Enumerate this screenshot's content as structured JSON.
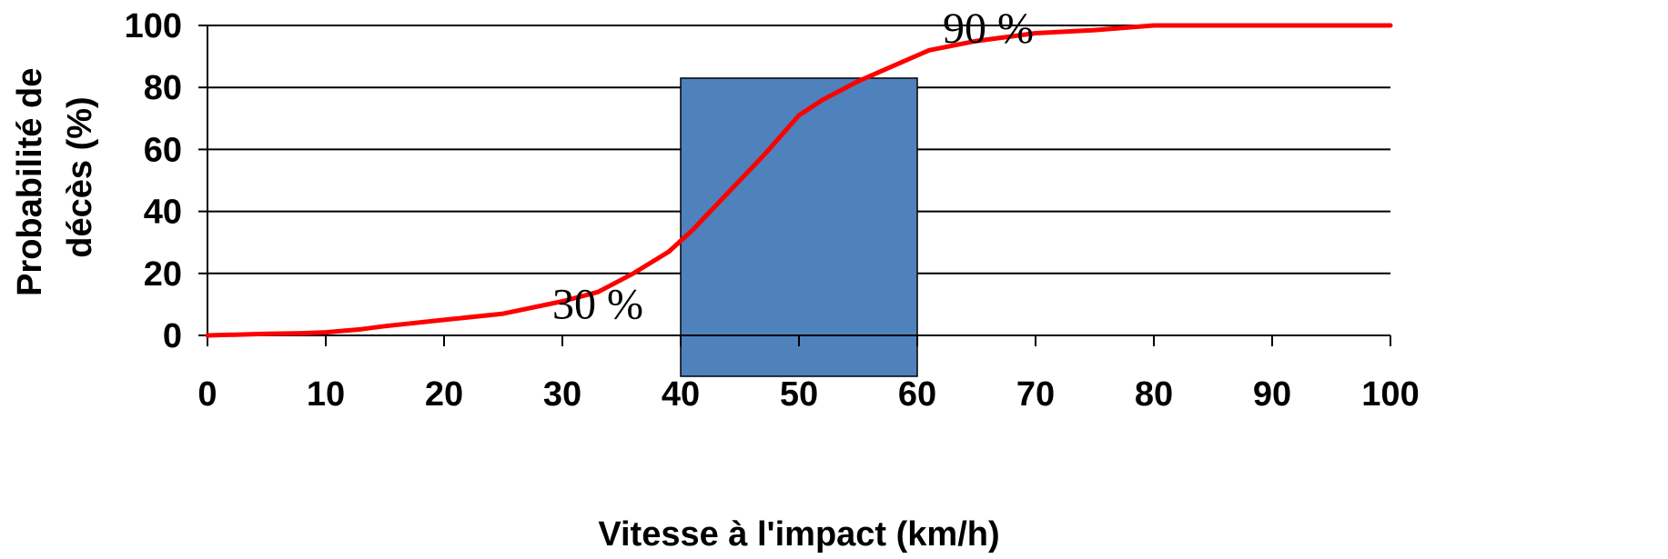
{
  "chart_data": {
    "type": "line",
    "xlabel": "Vitesse à l'impact (km/h)",
    "ylabel_lines": [
      "Probabilité de",
      "décès (%)"
    ],
    "xlim": [
      0,
      100
    ],
    "ylim": [
      0,
      100
    ],
    "x_ticks": [
      0,
      10,
      20,
      30,
      40,
      50,
      60,
      70,
      80,
      90,
      100
    ],
    "y_ticks": [
      0,
      20,
      40,
      60,
      80,
      100
    ],
    "grid": "horizontal",
    "series": [
      {
        "color": "#ff0000",
        "x": [
          0,
          5,
          8,
          10,
          13,
          15,
          20,
          25,
          30,
          33,
          36,
          39,
          41,
          44,
          47,
          50,
          52,
          55,
          58,
          61,
          65,
          70,
          75,
          80,
          90,
          100
        ],
        "y": [
          0,
          0.5,
          0.7,
          1,
          2,
          3,
          5,
          7,
          11,
          14,
          20,
          27,
          34,
          46,
          58,
          71,
          76,
          82,
          87,
          92,
          95,
          97.5,
          98.5,
          100,
          100,
          100
        ]
      }
    ],
    "highlight_band": {
      "x0": 40,
      "x1": 60,
      "y_top": 83,
      "color": "#4f81bd"
    },
    "annotations": [
      {
        "text": "30 %",
        "x": 33,
        "y": 9
      },
      {
        "text": "90 %",
        "x": 66,
        "y": 98
      }
    ]
  }
}
